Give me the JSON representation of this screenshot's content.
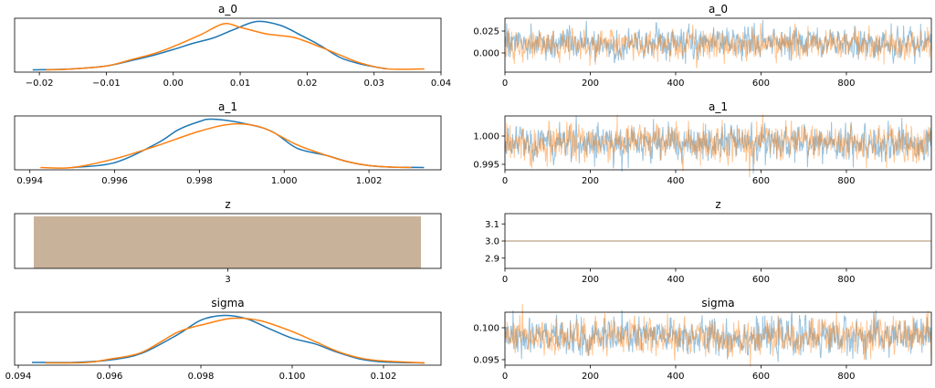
{
  "colors": {
    "chain_0": "#1f77b4",
    "chain_1": "#ff7f0e",
    "z_bar": "#c9b29a"
  },
  "chart_data": [
    {
      "type": "line",
      "panel": "kde",
      "title": "a_0",
      "xlim": [
        -0.0237,
        0.04
      ],
      "xticks": [
        -0.02,
        -0.01,
        0.0,
        0.01,
        0.02,
        0.03,
        0.04
      ],
      "xtick_labels": [
        "−0.02",
        "−0.01",
        "0.00",
        "0.01",
        "0.02",
        "0.03",
        "0.04"
      ],
      "series": [
        {
          "x": [
            -0.021,
            -0.015,
            -0.01,
            -0.006,
            -0.003,
            0.0,
            0.003,
            0.006,
            0.009,
            0.0125,
            0.016,
            0.019,
            0.022,
            0.025,
            0.028,
            0.031,
            0.032
          ],
          "y": [
            0.0,
            0.02,
            0.08,
            0.2,
            0.3,
            0.42,
            0.55,
            0.66,
            0.83,
            1.0,
            0.92,
            0.72,
            0.5,
            0.25,
            0.12,
            0.04,
            0.02
          ]
        },
        {
          "x": [
            -0.019,
            -0.015,
            -0.01,
            -0.006,
            -0.003,
            0.0,
            0.004,
            0.0075,
            0.01,
            0.014,
            0.018,
            0.022,
            0.025,
            0.028,
            0.032,
            0.0375
          ],
          "y": [
            0.0,
            0.02,
            0.08,
            0.22,
            0.33,
            0.48,
            0.72,
            0.95,
            0.88,
            0.74,
            0.67,
            0.47,
            0.3,
            0.14,
            0.02,
            0.02
          ]
        }
      ]
    },
    {
      "type": "line",
      "panel": "trace",
      "title": "a_0",
      "xlim": [
        0,
        999
      ],
      "ylim": [
        -0.0219,
        0.0396
      ],
      "xticks": [
        0,
        200,
        400,
        600,
        800
      ],
      "yticks": [
        0.0,
        0.025
      ],
      "ytick_labels": [
        "0.000",
        "0.025"
      ],
      "chains": [
        {
          "mean": 0.011,
          "sd": 0.0085,
          "seed": 11
        },
        {
          "mean": 0.0095,
          "sd": 0.0085,
          "seed": 23
        }
      ],
      "n_draws": 1000
    },
    {
      "type": "line",
      "panel": "kde",
      "title": "a_1",
      "xlim": [
        0.99364,
        1.0037
      ],
      "xticks": [
        0.994,
        0.996,
        0.998,
        1.0,
        1.002
      ],
      "xtick_labels": [
        "0.994",
        "0.996",
        "0.998",
        "1.000",
        "1.002"
      ],
      "series": [
        {
          "x": [
            0.995,
            0.996,
            0.997,
            0.9975,
            0.998,
            0.9983,
            0.999,
            0.9997,
            1.0003,
            1.001,
            1.0015,
            1.002,
            1.0025,
            1.0033
          ],
          "y": [
            0.0,
            0.1,
            0.5,
            0.78,
            0.95,
            1.0,
            0.92,
            0.75,
            0.4,
            0.25,
            0.12,
            0.04,
            0.01,
            0.0
          ]
        },
        {
          "x": [
            0.99425,
            0.995,
            0.996,
            0.997,
            0.998,
            0.9988,
            0.9995,
            1.0003,
            1.001,
            1.0015,
            1.002,
            1.0025,
            1.003
          ],
          "y": [
            0.0,
            0.0,
            0.18,
            0.45,
            0.75,
            0.9,
            0.82,
            0.47,
            0.25,
            0.12,
            0.04,
            0.01,
            0.0
          ]
        }
      ]
    },
    {
      "type": "line",
      "panel": "trace",
      "title": "a_1",
      "xlim": [
        0,
        999
      ],
      "ylim": [
        0.99403,
        1.00355
      ],
      "xticks": [
        0,
        200,
        400,
        600,
        800
      ],
      "yticks": [
        0.995,
        1.0
      ],
      "ytick_labels": [
        "0.995",
        "1.000"
      ],
      "chains": [
        {
          "mean": 0.9988,
          "sd": 0.0015,
          "seed": 37
        },
        {
          "mean": 0.9989,
          "sd": 0.0016,
          "seed": 41
        }
      ],
      "n_draws": 1000
    },
    {
      "type": "bar",
      "panel": "hist",
      "title": "z",
      "categories": [
        "3"
      ],
      "values": [
        1
      ]
    },
    {
      "type": "line",
      "panel": "trace",
      "title": "z",
      "xlim": [
        0,
        999
      ],
      "ylim": [
        2.84,
        3.16
      ],
      "xticks": [
        0,
        200,
        400,
        600,
        800
      ],
      "yticks": [
        2.9,
        3.0,
        3.1
      ],
      "ytick_labels": [
        "2.9",
        "3.0",
        "3.1"
      ],
      "chains": [
        {
          "mean": 3.0,
          "sd": 0,
          "seed": 1
        },
        {
          "mean": 3.0,
          "sd": 0,
          "seed": 2
        }
      ],
      "n_draws": 1000
    },
    {
      "type": "line",
      "panel": "kde",
      "title": "sigma",
      "xlim": [
        0.09392,
        0.10326
      ],
      "xticks": [
        0.094,
        0.096,
        0.098,
        0.1,
        0.102
      ],
      "xtick_labels": [
        "0.094",
        "0.096",
        "0.098",
        "0.100",
        "0.102"
      ],
      "series": [
        {
          "x": [
            0.0943,
            0.0952,
            0.096,
            0.0967,
            0.0975,
            0.098,
            0.0985,
            0.099,
            0.0995,
            0.1,
            0.1005,
            0.101,
            0.1015,
            0.102,
            0.1029
          ],
          "y": [
            0.01,
            0.01,
            0.06,
            0.2,
            0.6,
            0.9,
            1.0,
            0.93,
            0.72,
            0.52,
            0.4,
            0.22,
            0.08,
            0.02,
            0.0
          ]
        },
        {
          "x": [
            0.0946,
            0.0955,
            0.096,
            0.0967,
            0.0975,
            0.0981,
            0.0987,
            0.0993,
            0.1,
            0.1005,
            0.101,
            0.1015,
            0.102,
            0.1029
          ],
          "y": [
            0.0,
            0.01,
            0.08,
            0.22,
            0.65,
            0.82,
            0.94,
            0.89,
            0.66,
            0.45,
            0.24,
            0.1,
            0.04,
            0.0
          ]
        }
      ]
    },
    {
      "type": "line",
      "panel": "trace",
      "title": "sigma",
      "xlim": [
        0,
        999
      ],
      "ylim": [
        0.09414,
        0.10243
      ],
      "xticks": [
        0,
        200,
        400,
        600,
        800
      ],
      "yticks": [
        0.095,
        0.1
      ],
      "ytick_labels": [
        "0.095",
        "0.100"
      ],
      "chains": [
        {
          "mean": 0.0986,
          "sd": 0.0014,
          "seed": 53
        },
        {
          "mean": 0.0987,
          "sd": 0.0014,
          "seed": 59
        }
      ],
      "n_draws": 1000
    }
  ]
}
